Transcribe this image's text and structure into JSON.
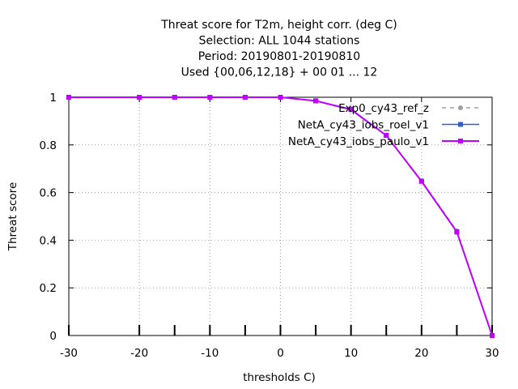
{
  "chart_data": {
    "type": "line",
    "title_lines": [
      "Threat score  for T2m, height corr. (deg C)",
      "Selection: ALL   1044 stations",
      "Period: 20190801-20190810",
      "Used {00,06,12,18} + 00 01 ... 12"
    ],
    "xlabel": "thresholds C)",
    "ylabel": "Threat score",
    "xlim": [
      -30,
      30
    ],
    "ylim": [
      0,
      1
    ],
    "xticks": [
      -30,
      -20,
      -10,
      0,
      10,
      20,
      30
    ],
    "yticks": [
      0,
      0.2,
      0.4,
      0.6,
      0.8,
      1
    ],
    "grid": true,
    "legend_position": "top-right",
    "x": [
      -30,
      -20,
      -15,
      -10,
      -5,
      0,
      5,
      10,
      15,
      20,
      25,
      30
    ],
    "series": [
      {
        "name": "Exp0_cy43_ref_z",
        "color": "#a0a0a0",
        "dash": "dashed",
        "marker": "circle",
        "values": [
          1,
          1,
          1,
          1,
          1,
          1,
          0.985,
          0.95,
          0.84,
          0.65,
          0.44,
          0
        ]
      },
      {
        "name": "NetA_cy43_iobs_roel_v1",
        "color": "#3060d0",
        "dash": "solid",
        "marker": "square",
        "values": [
          1,
          1,
          1,
          1,
          1,
          1,
          0.985,
          0.95,
          0.84,
          0.648,
          0.435,
          0
        ]
      },
      {
        "name": "NetA_cy43_iobs_paulo_v1",
        "color": "#c000ff",
        "dash": "solid",
        "marker": "square",
        "values": [
          1,
          1,
          1,
          1,
          1,
          1,
          0.985,
          0.948,
          0.84,
          0.647,
          0.435,
          0
        ]
      }
    ]
  }
}
